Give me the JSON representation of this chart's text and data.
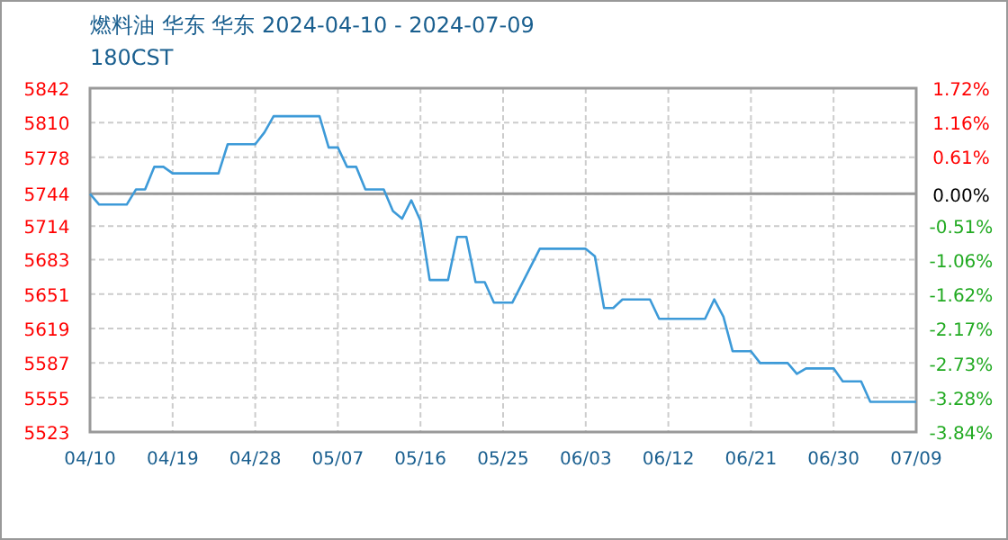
{
  "chart_data": {
    "type": "line",
    "title": "燃料油 华东 华东 2024-04-10 - 2024-07-09",
    "subtitle": "180CST",
    "x": [
      "2024-04-10",
      "2024-04-11",
      "2024-04-14",
      "2024-04-15",
      "2024-04-16",
      "2024-04-17",
      "2024-04-18",
      "2024-04-19",
      "2024-04-24",
      "2024-04-25",
      "2024-04-28",
      "2024-04-29",
      "2024-04-30",
      "2024-05-05",
      "2024-05-06",
      "2024-05-07",
      "2024-05-08",
      "2024-05-09",
      "2024-05-10",
      "2024-05-12",
      "2024-05-13",
      "2024-05-14",
      "2024-05-15",
      "2024-05-16",
      "2024-05-17",
      "2024-05-19",
      "2024-05-20",
      "2024-05-21",
      "2024-05-22",
      "2024-05-23",
      "2024-05-24",
      "2024-05-26",
      "2024-05-29",
      "2024-06-03",
      "2024-06-04",
      "2024-06-05",
      "2024-06-06",
      "2024-06-07",
      "2024-06-10",
      "2024-06-11",
      "2024-06-16",
      "2024-06-17",
      "2024-06-18",
      "2024-06-19",
      "2024-06-21",
      "2024-06-22",
      "2024-06-25",
      "2024-06-26",
      "2024-06-27",
      "2024-06-30",
      "2024-07-01",
      "2024-07-03",
      "2024-07-04",
      "2024-07-09"
    ],
    "series": [
      {
        "color": "#3d9ad8",
        "values": [
          5744,
          5734,
          5734,
          5748,
          5748,
          5769,
          5769,
          5763,
          5763,
          5790,
          5790,
          5801,
          5816,
          5816,
          5787,
          5787,
          5769,
          5769,
          5748,
          5748,
          5728,
          5721,
          5738,
          5719,
          5664,
          5664,
          5704,
          5704,
          5662,
          5662,
          5643,
          5643,
          5693,
          5693,
          5686,
          5638,
          5638,
          5646,
          5646,
          5628,
          5628,
          5646,
          5630,
          5598,
          5598,
          5587,
          5587,
          5577,
          5582,
          5582,
          5570,
          5570,
          5551,
          5551
        ]
      }
    ],
    "xlim": [
      "2024-04-10",
      "2024-07-09"
    ],
    "xticks": [
      {
        "value": "2024-04-10",
        "label": "04/10"
      },
      {
        "value": "2024-04-19",
        "label": "04/19"
      },
      {
        "value": "2024-04-28",
        "label": "04/28"
      },
      {
        "value": "2024-05-07",
        "label": "05/07"
      },
      {
        "value": "2024-05-16",
        "label": "05/16"
      },
      {
        "value": "2024-05-25",
        "label": "05/25"
      },
      {
        "value": "2024-06-03",
        "label": "06/03"
      },
      {
        "value": "2024-06-12",
        "label": "06/12"
      },
      {
        "value": "2024-06-21",
        "label": "06/21"
      },
      {
        "value": "2024-06-30",
        "label": "06/30"
      },
      {
        "value": "2024-07-09",
        "label": "07/09"
      }
    ],
    "ylim": [
      5523,
      5842
    ],
    "yticks": [
      5523,
      5555,
      5587,
      5619,
      5651,
      5683,
      5714,
      5744,
      5778,
      5810,
      5842
    ],
    "y2lim": [
      -3.84,
      1.72
    ],
    "y2ticks": [
      {
        "value": -3.84,
        "label": "-3.84%"
      },
      {
        "value": -3.28,
        "label": "-3.28%"
      },
      {
        "value": -2.73,
        "label": "-2.73%"
      },
      {
        "value": -2.17,
        "label": "-2.17%"
      },
      {
        "value": -1.62,
        "label": "-1.62%"
      },
      {
        "value": -1.06,
        "label": "-1.06%"
      },
      {
        "value": -0.51,
        "label": "-0.51%"
      },
      {
        "value": 0,
        "label": "0.00%"
      },
      {
        "value": 0.61,
        "label": "0.61%"
      },
      {
        "value": 1.16,
        "label": "1.16%"
      },
      {
        "value": 1.72,
        "label": "1.72%"
      }
    ],
    "ref_lines": [
      {
        "axis": "y",
        "value": 5744,
        "color": "#999999"
      }
    ],
    "grid": true
  }
}
